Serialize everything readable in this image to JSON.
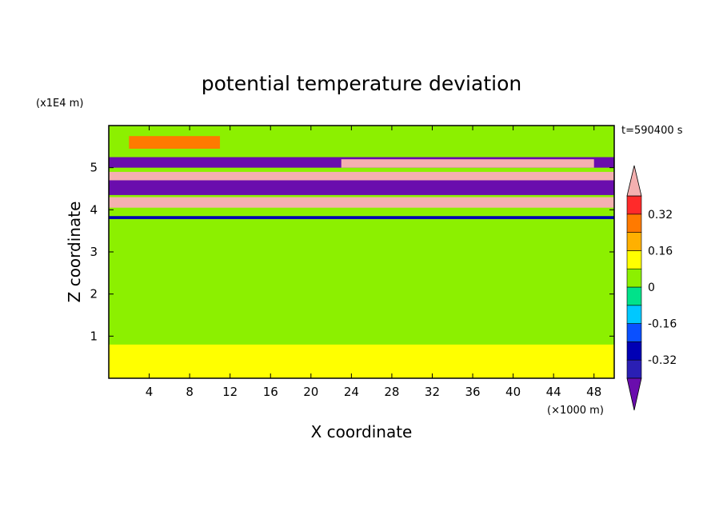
{
  "chart_data": {
    "type": "heatmap",
    "title": "potential temperature deviation",
    "xlabel": "X coordinate",
    "ylabel": "Z coordinate",
    "x_unit": "(×1000 m)",
    "y_unit": "(x1E4 m)",
    "time_label": "t=590400 s",
    "xlim": [
      0,
      50
    ],
    "ylim": [
      0,
      6
    ],
    "x_ticks": [
      4,
      8,
      12,
      16,
      20,
      24,
      28,
      32,
      36,
      40,
      44,
      48
    ],
    "y_ticks": [
      1,
      2,
      3,
      4,
      5
    ],
    "colorbar": {
      "ticks": [
        {
          "value": 0.32,
          "label": "0.32"
        },
        {
          "value": 0.16,
          "label": "0.16"
        },
        {
          "value": 0,
          "label": "0"
        },
        {
          "value": -0.16,
          "label": "-0.16"
        },
        {
          "value": -0.32,
          "label": "-0.32"
        }
      ],
      "levels": [
        -0.48,
        -0.4,
        -0.32,
        -0.24,
        -0.16,
        -0.08,
        0,
        0.08,
        0.16,
        0.24,
        0.32,
        0.4,
        0.48
      ],
      "colors": [
        "#6a0dad",
        "#2a1fb4",
        "#0000b4",
        "#0a50ff",
        "#00c8ff",
        "#00e28a",
        "#8cf000",
        "#ffff00",
        "#ffb000",
        "#ff7a00",
        "#ff2a2a",
        "#f4b0b0"
      ]
    },
    "field_bands": [
      {
        "z_min": 5.45,
        "z_max": 5.75,
        "x_min": 2,
        "x_max": 11,
        "value": 0.3
      },
      {
        "z_min": 5.0,
        "z_max": 5.25,
        "x_min": 0,
        "x_max": 50,
        "value": -0.45
      },
      {
        "z_min": 5.0,
        "z_max": 5.2,
        "x_min": 23,
        "x_max": 48,
        "value": 0.45
      },
      {
        "z_min": 4.6,
        "z_max": 4.9,
        "x_min": 0,
        "x_max": 50,
        "value": 0.45
      },
      {
        "z_min": 4.35,
        "z_max": 4.7,
        "x_min": 0,
        "x_max": 50,
        "value": -0.45
      },
      {
        "z_min": 4.05,
        "z_max": 4.3,
        "x_min": 0,
        "x_max": 50,
        "value": 0.45
      },
      {
        "z_min": 3.78,
        "z_max": 3.85,
        "x_min": 0,
        "x_max": 50,
        "value": -0.3
      },
      {
        "z_min": 0.0,
        "z_max": 0.8,
        "x_min": 0,
        "x_max": 50,
        "value": 0.08
      }
    ]
  }
}
